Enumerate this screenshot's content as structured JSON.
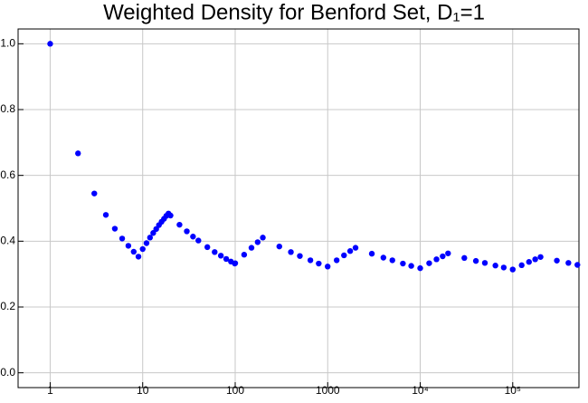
{
  "chart_data": {
    "type": "scatter",
    "title": "Weighted Density for Benford Set, D₁=1",
    "x": [
      1,
      2,
      3,
      4,
      5,
      6,
      7,
      8,
      9,
      10,
      11,
      12,
      13,
      14,
      15,
      16,
      17,
      18,
      19,
      20,
      25,
      30,
      35,
      40,
      50,
      60,
      70,
      80,
      90,
      99,
      100,
      125,
      150,
      175,
      199,
      300,
      400,
      500,
      650,
      800,
      999,
      1250,
      1500,
      1750,
      1999,
      3000,
      4000,
      5000,
      6500,
      8000,
      9999,
      12500,
      15000,
      17500,
      19999,
      30000,
      40000,
      50000,
      65000,
      80000,
      99999,
      125000,
      150000,
      175000,
      199999,
      300000,
      400000,
      500000
    ],
    "series": [
      {
        "color": "#0000ff",
        "values": [
          1.0,
          0.667,
          0.545,
          0.48,
          0.438,
          0.408,
          0.386,
          0.368,
          0.353,
          0.376,
          0.394,
          0.411,
          0.425,
          0.437,
          0.449,
          0.459,
          0.468,
          0.477,
          0.484,
          0.478,
          0.45,
          0.43,
          0.414,
          0.402,
          0.382,
          0.367,
          0.356,
          0.346,
          0.338,
          0.332,
          0.333,
          0.359,
          0.38,
          0.397,
          0.411,
          0.384,
          0.367,
          0.355,
          0.342,
          0.332,
          0.323,
          0.342,
          0.357,
          0.37,
          0.38,
          0.362,
          0.35,
          0.342,
          0.332,
          0.325,
          0.318,
          0.333,
          0.345,
          0.354,
          0.363,
          0.349,
          0.34,
          0.334,
          0.326,
          0.32,
          0.314,
          0.327,
          0.337,
          0.345,
          0.352,
          0.341,
          0.334,
          0.328
        ]
      }
    ],
    "log_x": true,
    "xlim": [
      0.45,
      520000
    ],
    "xticks": [
      1,
      10,
      100,
      1000,
      {
        "value": 10000,
        "label": "10⁴"
      },
      {
        "value": 100000,
        "label": "10⁵"
      }
    ],
    "ylim": [
      -0.045,
      1.045
    ],
    "yticks": [
      {
        "value": 0,
        "label": "0.0"
      },
      0.2,
      0.4,
      0.6,
      0.8,
      {
        "value": 1,
        "label": "1.0"
      }
    ],
    "grid": true
  }
}
